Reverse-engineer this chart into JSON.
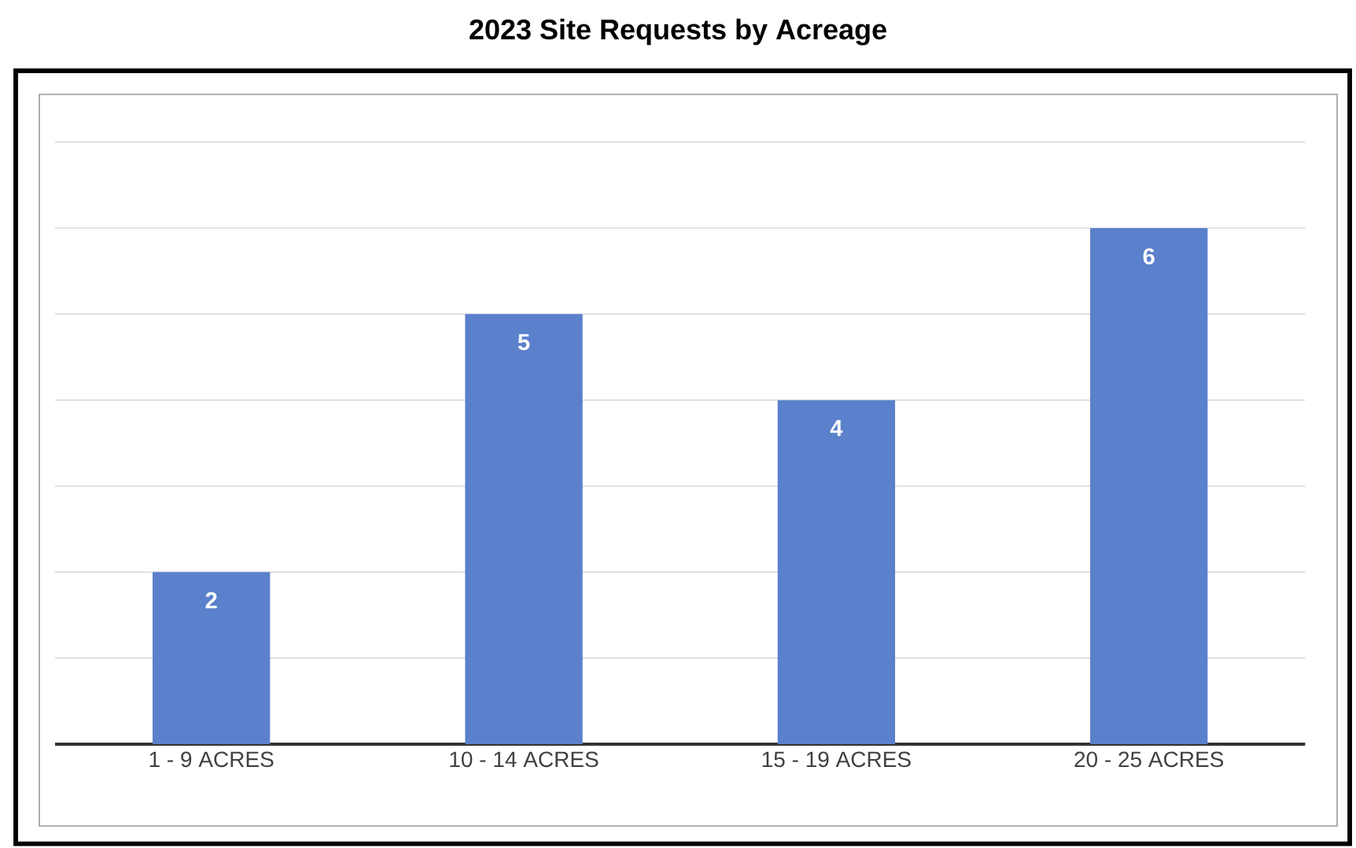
{
  "chart_data": {
    "type": "bar",
    "title": "2023 Site Requests by Acreage",
    "categories": [
      "1 - 9 ACRES",
      "10 - 14 ACRES",
      "15 - 19 ACRES",
      "20 - 25 ACRES"
    ],
    "values": [
      2,
      5,
      4,
      6
    ],
    "color": "#5b80cc",
    "tick_labels": "x",
    "grid": "y",
    "data_labels": true
  }
}
